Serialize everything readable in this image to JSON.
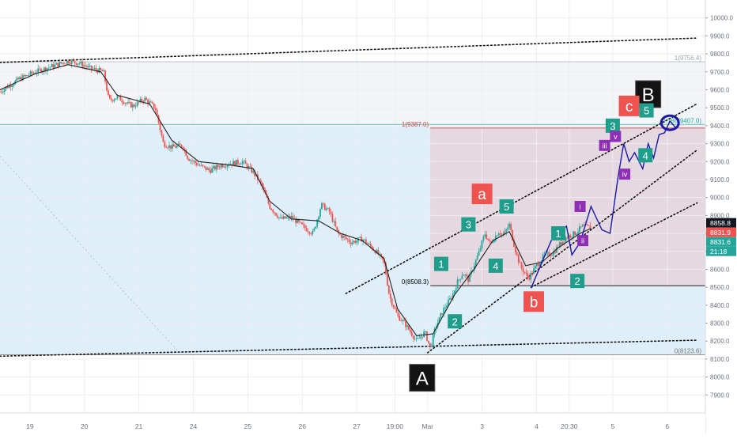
{
  "chart_data": {
    "type": "candlestick",
    "instrument_timeframe": "",
    "y_axis": {
      "ylim": [
        7800,
        10100
      ],
      "ticks": [
        "7900.0",
        "8000.0",
        "8100.0",
        "8200.0",
        "8300.0",
        "8400.0",
        "8500.0",
        "8600.0",
        "8700.0",
        "8800.0",
        "8900.0",
        "9000.0",
        "9100.0",
        "9200.0",
        "9300.0",
        "9400.0",
        "9500.0",
        "9600.0",
        "9700.0",
        "9800.0",
        "9900.0",
        "10000.0"
      ],
      "tick_values": [
        7900,
        8000,
        8100,
        8200,
        8300,
        8400,
        8500,
        8600,
        8700,
        8800,
        8900,
        9000,
        9100,
        9200,
        9300,
        9400,
        9500,
        9600,
        9700,
        9800,
        9900,
        10000
      ]
    },
    "x_axis": {
      "ticks": [
        "19",
        "20",
        "21",
        "24",
        "25",
        "26",
        "27",
        "19:00",
        "Mar",
        "3",
        "4",
        "20:30",
        "5",
        "6"
      ],
      "tick_positions": [
        0.2,
        1.2,
        2.2,
        3.2,
        4.2,
        5.2,
        6.2,
        6.9,
        7.5,
        8.5,
        9.5,
        10.1,
        10.9,
        11.9
      ],
      "xlim": [
        -0.35,
        12.6
      ]
    },
    "price_labels": [
      {
        "text": "8858.8",
        "value": 8858.8,
        "bg": "#131722"
      },
      {
        "text": "8831.9",
        "value": 8831.9,
        "bg": "#ef5350"
      },
      {
        "text": "8831.6",
        "value": 8831.6,
        "bg": "#26a69a"
      },
      {
        "text": "21:18",
        "value": 8776,
        "bg": "#26a69a"
      }
    ],
    "fib_levels": [
      {
        "label": "1(9756.4)",
        "value": 9756.4,
        "color": "#9aa5b1"
      },
      {
        "label": "1(9387.0)",
        "value": 9387.0,
        "color": "#e53935"
      },
      {
        "label": "0.786(9407.0)",
        "value": 9407.0,
        "color": "#26a69a"
      },
      {
        "label": "0(8508.3)",
        "value": 8508.3,
        "color": "#000000"
      },
      {
        "label": "0(8123.6)",
        "value": 8123.6,
        "color": "#757575"
      }
    ],
    "price_path": [
      [
        -0.35,
        9590
      ],
      [
        0.0,
        9660
      ],
      [
        0.3,
        9700
      ],
      [
        0.6,
        9730
      ],
      [
        0.9,
        9760
      ],
      [
        1.1,
        9750
      ],
      [
        1.3,
        9720
      ],
      [
        1.55,
        9700
      ],
      [
        1.65,
        9540
      ],
      [
        1.8,
        9560
      ],
      [
        2.0,
        9520
      ],
      [
        2.1,
        9510
      ],
      [
        2.3,
        9550
      ],
      [
        2.5,
        9500
      ],
      [
        2.65,
        9300
      ],
      [
        2.8,
        9280
      ],
      [
        3.0,
        9290
      ],
      [
        3.1,
        9220
      ],
      [
        3.3,
        9180
      ],
      [
        3.5,
        9150
      ],
      [
        3.7,
        9180
      ],
      [
        3.9,
        9190
      ],
      [
        4.1,
        9200
      ],
      [
        4.3,
        9140
      ],
      [
        4.45,
        9070
      ],
      [
        4.6,
        8950
      ],
      [
        4.8,
        8880
      ],
      [
        5.0,
        8890
      ],
      [
        5.2,
        8840
      ],
      [
        5.4,
        8800
      ],
      [
        5.55,
        8960
      ],
      [
        5.7,
        8920
      ],
      [
        5.85,
        8800
      ],
      [
        6.1,
        8750
      ],
      [
        6.3,
        8770
      ],
      [
        6.55,
        8700
      ],
      [
        6.7,
        8640
      ],
      [
        6.8,
        8450
      ],
      [
        6.95,
        8340
      ],
      [
        7.1,
        8290
      ],
      [
        7.3,
        8200
      ],
      [
        7.45,
        8250
      ],
      [
        7.55,
        8160
      ],
      [
        7.65,
        8280
      ],
      [
        7.8,
        8380
      ],
      [
        7.95,
        8450
      ],
      [
        8.05,
        8530
      ],
      [
        8.15,
        8580
      ],
      [
        8.25,
        8540
      ],
      [
        8.35,
        8620
      ],
      [
        8.45,
        8700
      ],
      [
        8.55,
        8800
      ],
      [
        8.65,
        8740
      ],
      [
        8.8,
        8810
      ],
      [
        8.9,
        8790
      ],
      [
        9.0,
        8850
      ],
      [
        9.1,
        8720
      ],
      [
        9.2,
        8620
      ],
      [
        9.35,
        8550
      ],
      [
        9.5,
        8620
      ],
      [
        9.65,
        8680
      ],
      [
        9.8,
        8690
      ],
      [
        9.9,
        8730
      ],
      [
        10.05,
        8780
      ],
      [
        10.2,
        8800
      ],
      [
        10.35,
        8840
      ],
      [
        10.5,
        8831.6
      ]
    ],
    "ma_path": [
      [
        -0.35,
        9600
      ],
      [
        0.3,
        9690
      ],
      [
        0.9,
        9740
      ],
      [
        1.5,
        9700
      ],
      [
        1.8,
        9570
      ],
      [
        2.4,
        9520
      ],
      [
        2.8,
        9320
      ],
      [
        3.3,
        9200
      ],
      [
        3.9,
        9180
      ],
      [
        4.3,
        9160
      ],
      [
        4.6,
        8980
      ],
      [
        5.0,
        8880
      ],
      [
        5.5,
        8870
      ],
      [
        5.9,
        8800
      ],
      [
        6.3,
        8760
      ],
      [
        6.7,
        8660
      ],
      [
        6.95,
        8380
      ],
      [
        7.3,
        8230
      ],
      [
        7.6,
        8240
      ],
      [
        8.0,
        8460
      ],
      [
        8.35,
        8600
      ],
      [
        8.7,
        8760
      ],
      [
        9.0,
        8810
      ],
      [
        9.3,
        8620
      ],
      [
        9.6,
        8640
      ],
      [
        9.9,
        8720
      ],
      [
        10.3,
        8800
      ],
      [
        10.5,
        8828
      ]
    ],
    "wave_projection": [
      [
        9.4,
        8495
      ],
      [
        9.6,
        8640
      ],
      [
        9.8,
        8780
      ],
      [
        10.05,
        8840
      ],
      [
        10.15,
        8680
      ],
      [
        10.3,
        8750
      ],
      [
        10.5,
        8950
      ],
      [
        10.7,
        8820
      ],
      [
        10.85,
        8800
      ],
      [
        11.0,
        9120
      ],
      [
        11.1,
        9300
      ],
      [
        11.2,
        9200
      ],
      [
        11.3,
        9250
      ],
      [
        11.45,
        9160
      ],
      [
        11.55,
        9300
      ],
      [
        11.65,
        9220
      ],
      [
        11.75,
        9350
      ],
      [
        11.85,
        9360
      ],
      [
        11.95,
        9425
      ],
      [
        12.05,
        9390
      ]
    ],
    "trendlines": [
      {
        "from": [
          -0.35,
          9752
        ],
        "to": [
          12.45,
          9888
        ]
      },
      {
        "from": [
          -0.35,
          8116
        ],
        "to": [
          12.45,
          8205
        ]
      },
      {
        "from": [
          6.0,
          8465
        ],
        "to": [
          12.45,
          9522
        ]
      },
      {
        "from": [
          7.5,
          8135
        ],
        "to": [
          12.45,
          9265
        ]
      },
      {
        "from": [
          9.4,
          8500
        ],
        "to": [
          12.45,
          8970
        ]
      }
    ],
    "labels": [
      {
        "text": "A",
        "x": 7.4,
        "y": 8000,
        "style": "black-big"
      },
      {
        "text": "B",
        "x": 11.55,
        "y": 9580,
        "style": "black-big"
      },
      {
        "text": "a",
        "x": 8.5,
        "y": 9020,
        "style": "red"
      },
      {
        "text": "b",
        "x": 9.45,
        "y": 8420,
        "style": "red"
      },
      {
        "text": "c",
        "x": 11.2,
        "y": 9510,
        "style": "red"
      },
      {
        "text": "1",
        "x": 7.75,
        "y": 8630,
        "style": "teal"
      },
      {
        "text": "2",
        "x": 8.0,
        "y": 8310,
        "style": "teal"
      },
      {
        "text": "3",
        "x": 8.25,
        "y": 8850,
        "style": "teal"
      },
      {
        "text": "4",
        "x": 8.75,
        "y": 8620,
        "style": "teal"
      },
      {
        "text": "5",
        "x": 8.95,
        "y": 8950,
        "style": "teal"
      },
      {
        "text": "1",
        "x": 9.9,
        "y": 8800,
        "style": "teal"
      },
      {
        "text": "2",
        "x": 10.25,
        "y": 8535,
        "style": "teal"
      },
      {
        "text": "3",
        "x": 10.9,
        "y": 9400,
        "style": "teal"
      },
      {
        "text": "4",
        "x": 11.5,
        "y": 9235,
        "style": "teal"
      },
      {
        "text": "5",
        "x": 11.52,
        "y": 9485,
        "style": "teal"
      },
      {
        "text": "i",
        "x": 10.3,
        "y": 8950,
        "style": "purple"
      },
      {
        "text": "ii",
        "x": 10.35,
        "y": 8760,
        "style": "purple"
      },
      {
        "text": "iii",
        "x": 10.75,
        "y": 9290,
        "style": "purple"
      },
      {
        "text": "iv",
        "x": 11.12,
        "y": 9130,
        "style": "purple"
      },
      {
        "text": "v",
        "x": 10.95,
        "y": 9340,
        "style": "purple"
      }
    ]
  }
}
